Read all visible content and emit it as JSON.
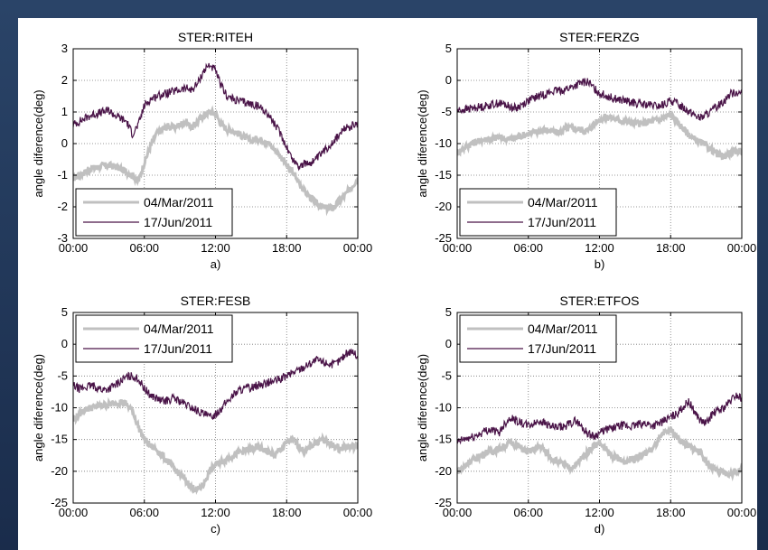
{
  "chart_data": [
    {
      "type": "line",
      "title": "STER:RITEH",
      "caption": "a)",
      "ylabel": "angle diference(deg)",
      "ylim": [
        -3,
        3
      ],
      "yticks": [
        "-3",
        "-2",
        "-1",
        "0",
        "1",
        "2",
        "3"
      ],
      "xlim": [
        0,
        24
      ],
      "xticks": [
        "00:00",
        "06:00",
        "12:00",
        "18:00",
        "00:00"
      ],
      "grid": true,
      "legend_position": "bottom-left",
      "series": [
        {
          "name": "04/Mar/2011",
          "color": "#c0c0c0",
          "x": [
            0,
            0.5,
            1,
            1.5,
            2,
            2.5,
            3,
            3.5,
            4,
            4.5,
            5,
            5.5,
            6,
            6.5,
            7,
            7.5,
            8,
            8.5,
            9,
            9.5,
            10,
            10.5,
            11,
            11.5,
            12,
            12.5,
            13,
            13.5,
            14,
            14.5,
            15,
            15.5,
            16,
            16.5,
            17,
            17.5,
            18,
            18.5,
            19,
            19.5,
            20,
            20.5,
            21,
            21.5,
            22,
            22.5,
            23,
            23.5,
            24
          ],
          "y": [
            -1.1,
            -1.0,
            -0.9,
            -0.8,
            -0.75,
            -0.7,
            -0.7,
            -0.72,
            -0.8,
            -0.9,
            -1.0,
            -1.2,
            -0.6,
            -0.1,
            0.3,
            0.45,
            0.55,
            0.5,
            0.6,
            0.7,
            0.5,
            0.7,
            0.9,
            1.0,
            0.95,
            0.6,
            0.45,
            0.4,
            0.3,
            0.2,
            0.1,
            0.15,
            0.1,
            0.0,
            -0.2,
            -0.4,
            -0.7,
            -0.9,
            -1.2,
            -1.5,
            -1.7,
            -1.9,
            -2.0,
            -2.05,
            -2.0,
            -1.8,
            -1.6,
            -1.35,
            -1.1
          ]
        },
        {
          "name": "17/Jun/2011",
          "color": "#4a1448",
          "x": [
            0,
            0.5,
            1,
            1.5,
            2,
            2.5,
            3,
            3.5,
            4,
            4.5,
            5,
            5.5,
            6,
            6.5,
            7,
            7.5,
            8,
            8.5,
            9,
            9.5,
            10,
            10.5,
            11,
            11.5,
            12,
            12.5,
            13,
            13.5,
            14,
            14.5,
            15,
            15.5,
            16,
            16.5,
            17,
            17.5,
            18,
            18.5,
            19,
            19.5,
            20,
            20.5,
            21,
            21.5,
            22,
            22.5,
            23,
            23.5,
            24
          ],
          "y": [
            0.6,
            0.7,
            0.8,
            0.9,
            0.95,
            1.0,
            1.05,
            0.9,
            0.8,
            0.7,
            0.3,
            0.6,
            1.2,
            1.4,
            1.5,
            1.55,
            1.6,
            1.65,
            1.7,
            1.75,
            1.7,
            1.9,
            2.3,
            2.5,
            2.3,
            1.8,
            1.5,
            1.4,
            1.35,
            1.3,
            1.25,
            1.2,
            1.1,
            0.9,
            0.6,
            0.3,
            -0.1,
            -0.5,
            -0.7,
            -0.65,
            -0.6,
            -0.5,
            -0.3,
            -0.1,
            0.1,
            0.3,
            0.5,
            0.55,
            0.6
          ]
        }
      ]
    },
    {
      "type": "line",
      "title": "STER:FERZG",
      "caption": "b)",
      "ylabel": "angle diference(deg)",
      "ylim": [
        -25,
        5
      ],
      "yticks": [
        "-25",
        "-20",
        "-15",
        "-10",
        "-5",
        "0",
        "5"
      ],
      "xlim": [
        0,
        24
      ],
      "xticks": [
        "00:00",
        "06:00",
        "12:00",
        "18:00",
        "00:00"
      ],
      "grid": true,
      "legend_position": "bottom-left",
      "series": [
        {
          "name": "04/Mar/2011",
          "color": "#c0c0c0",
          "x": [
            0,
            0.5,
            1,
            1.5,
            2,
            2.5,
            3,
            3.5,
            4,
            4.5,
            5,
            5.5,
            6,
            6.5,
            7,
            7.5,
            8,
            8.5,
            9,
            9.5,
            10,
            10.5,
            11,
            11.5,
            12,
            12.5,
            13,
            13.5,
            14,
            14.5,
            15,
            15.5,
            16,
            16.5,
            17,
            17.5,
            18,
            18.5,
            19,
            19.5,
            20,
            20.5,
            21,
            21.5,
            22,
            22.5,
            23,
            23.5,
            24
          ],
          "y": [
            -11.5,
            -10.8,
            -10.2,
            -9.8,
            -9.5,
            -9.3,
            -9.2,
            -9.0,
            -9.2,
            -9.3,
            -9.0,
            -8.7,
            -8.4,
            -8.2,
            -8.0,
            -7.8,
            -8.1,
            -8.3,
            -7.8,
            -7.5,
            -7.6,
            -7.8,
            -8.0,
            -7.0,
            -6.2,
            -5.8,
            -5.9,
            -6.2,
            -6.4,
            -6.6,
            -6.7,
            -6.9,
            -6.6,
            -6.4,
            -6.2,
            -5.8,
            -5.5,
            -6.5,
            -7.5,
            -8.5,
            -9.3,
            -9.8,
            -10.3,
            -11.0,
            -11.8,
            -12.0,
            -11.5,
            -11.3,
            -11.0
          ]
        },
        {
          "name": "17/Jun/2011",
          "color": "#4a1448",
          "x": [
            0,
            0.5,
            1,
            1.5,
            2,
            2.5,
            3,
            3.5,
            4,
            4.5,
            5,
            5.5,
            6,
            6.5,
            7,
            7.5,
            8,
            8.5,
            9,
            9.5,
            10,
            10.5,
            11,
            11.5,
            12,
            12.5,
            13,
            13.5,
            14,
            14.5,
            15,
            15.5,
            16,
            16.5,
            17,
            17.5,
            18,
            18.5,
            19,
            19.5,
            20,
            20.5,
            21,
            21.5,
            22,
            22.5,
            23,
            23.5,
            24
          ],
          "y": [
            -4.8,
            -4.6,
            -4.5,
            -4.3,
            -4.2,
            -4.0,
            -3.8,
            -3.6,
            -3.8,
            -4.2,
            -4.4,
            -3.8,
            -3.2,
            -2.8,
            -2.4,
            -2.1,
            -1.8,
            -1.6,
            -1.5,
            -1.2,
            -0.8,
            -0.4,
            -0.2,
            -1.2,
            -2.0,
            -2.4,
            -2.7,
            -3.0,
            -3.2,
            -3.4,
            -3.6,
            -3.8,
            -3.9,
            -4.0,
            -4.1,
            -3.8,
            -3.2,
            -3.6,
            -4.2,
            -4.8,
            -5.4,
            -6.0,
            -5.4,
            -4.8,
            -4.0,
            -3.2,
            -2.2,
            -1.8,
            -2.0
          ]
        }
      ]
    },
    {
      "type": "line",
      "title": "STER:FESB",
      "caption": "c)",
      "ylabel": "angle diference(deg)",
      "ylim": [
        -25,
        5
      ],
      "yticks": [
        "-25",
        "-20",
        "-15",
        "-10",
        "-5",
        "0",
        "5"
      ],
      "xlim": [
        0,
        24
      ],
      "xticks": [
        "00:00",
        "06:00",
        "12:00",
        "18:00",
        "00:00"
      ],
      "grid": true,
      "legend_position": "top-left",
      "series": [
        {
          "name": "04/Mar/2011",
          "color": "#c0c0c0",
          "x": [
            0,
            0.5,
            1,
            1.5,
            2,
            2.5,
            3,
            3.5,
            4,
            4.5,
            5,
            5.5,
            6,
            6.5,
            7,
            7.5,
            8,
            8.5,
            9,
            9.5,
            10,
            10.5,
            11,
            11.5,
            12,
            12.5,
            13,
            13.5,
            14,
            14.5,
            15,
            15.5,
            16,
            16.5,
            17,
            17.5,
            18,
            18.5,
            19,
            19.5,
            20,
            20.5,
            21,
            21.5,
            22,
            22.5,
            23,
            23.5,
            24
          ],
          "y": [
            -12.0,
            -11.0,
            -10.3,
            -10.0,
            -9.8,
            -9.6,
            -9.5,
            -9.3,
            -9.0,
            -9.5,
            -10.5,
            -13.0,
            -15.0,
            -16.0,
            -16.5,
            -17.5,
            -18.5,
            -19.5,
            -20.5,
            -21.5,
            -22.5,
            -23.0,
            -22.0,
            -20.0,
            -19.0,
            -18.5,
            -18.0,
            -17.5,
            -17.0,
            -16.8,
            -16.5,
            -16.3,
            -16.5,
            -17.0,
            -17.5,
            -16.5,
            -15.5,
            -15.0,
            -16.0,
            -17.0,
            -16.0,
            -15.5,
            -15.0,
            -15.5,
            -16.0,
            -16.5,
            -16.0,
            -16.2,
            -16.0
          ]
        },
        {
          "name": "17/Jun/2011",
          "color": "#4a1448",
          "x": [
            0,
            0.5,
            1,
            1.5,
            2,
            2.5,
            3,
            3.5,
            4,
            4.5,
            5,
            5.5,
            6,
            6.5,
            7,
            7.5,
            8,
            8.5,
            9,
            9.5,
            10,
            10.5,
            11,
            11.5,
            12,
            12.5,
            13,
            13.5,
            14,
            14.5,
            15,
            15.5,
            16,
            16.5,
            17,
            17.5,
            18,
            18.5,
            19,
            19.5,
            20,
            20.5,
            21,
            21.5,
            22,
            22.5,
            23,
            23.5,
            24
          ],
          "y": [
            -6.5,
            -7.0,
            -6.8,
            -6.5,
            -6.8,
            -7.2,
            -7.0,
            -6.5,
            -5.8,
            -5.2,
            -5.0,
            -5.5,
            -7.0,
            -8.0,
            -8.5,
            -9.0,
            -8.8,
            -8.5,
            -9.0,
            -9.5,
            -10.0,
            -10.5,
            -11.0,
            -11.5,
            -11.0,
            -10.0,
            -9.0,
            -8.0,
            -7.2,
            -7.0,
            -6.8,
            -6.5,
            -6.3,
            -6.0,
            -5.8,
            -5.5,
            -5.0,
            -4.5,
            -4.0,
            -3.5,
            -3.0,
            -2.5,
            -2.8,
            -3.0,
            -3.2,
            -2.5,
            -1.5,
            -1.0,
            -2.0
          ]
        }
      ]
    },
    {
      "type": "line",
      "title": "STER:ETFOS",
      "caption": "d)",
      "ylabel": "angle diference(deg)",
      "ylim": [
        -25,
        5
      ],
      "yticks": [
        "-25",
        "-20",
        "-15",
        "-10",
        "-5",
        "0",
        "5"
      ],
      "xlim": [
        0,
        24
      ],
      "xticks": [
        "00:00",
        "06:00",
        "12:00",
        "18:00",
        "00:00"
      ],
      "grid": true,
      "legend_position": "top-left",
      "series": [
        {
          "name": "04/Mar/2011",
          "color": "#c0c0c0",
          "x": [
            0,
            0.5,
            1,
            1.5,
            2,
            2.5,
            3,
            3.5,
            4,
            4.5,
            5,
            5.5,
            6,
            6.5,
            7,
            7.5,
            8,
            8.5,
            9,
            9.5,
            10,
            10.5,
            11,
            11.5,
            12,
            12.5,
            13,
            13.5,
            14,
            14.5,
            15,
            15.5,
            16,
            16.5,
            17,
            17.5,
            18,
            18.5,
            19,
            19.5,
            20,
            20.5,
            21,
            21.5,
            22,
            22.5,
            23,
            23.5,
            24
          ],
          "y": [
            -20.0,
            -19.5,
            -18.5,
            -18.0,
            -17.5,
            -17.0,
            -16.8,
            -16.5,
            -16.0,
            -15.5,
            -15.8,
            -16.5,
            -17.0,
            -16.5,
            -16.0,
            -17.0,
            -18.0,
            -18.5,
            -19.0,
            -19.5,
            -19.0,
            -18.0,
            -17.0,
            -16.0,
            -15.5,
            -16.5,
            -17.5,
            -18.0,
            -18.5,
            -18.2,
            -18.0,
            -17.5,
            -17.0,
            -16.5,
            -15.0,
            -14.0,
            -13.5,
            -14.5,
            -15.5,
            -16.0,
            -16.5,
            -17.0,
            -18.5,
            -19.5,
            -20.0,
            -20.3,
            -20.5,
            -20.0,
            -19.8
          ]
        },
        {
          "name": "17/Jun/2011",
          "color": "#4a1448",
          "x": [
            0,
            0.5,
            1,
            1.5,
            2,
            2.5,
            3,
            3.5,
            4,
            4.5,
            5,
            5.5,
            6,
            6.5,
            7,
            7.5,
            8,
            8.5,
            9,
            9.5,
            10,
            10.5,
            11,
            11.5,
            12,
            12.5,
            13,
            13.5,
            14,
            14.5,
            15,
            15.5,
            16,
            16.5,
            17,
            17.5,
            18,
            18.5,
            19,
            19.5,
            20,
            20.5,
            21,
            21.5,
            22,
            22.5,
            23,
            23.5,
            24
          ],
          "y": [
            -15.5,
            -15.0,
            -14.8,
            -14.5,
            -14.0,
            -13.5,
            -13.5,
            -14.0,
            -12.5,
            -11.5,
            -12.0,
            -12.5,
            -12.8,
            -12.5,
            -12.0,
            -12.5,
            -13.0,
            -13.2,
            -13.0,
            -12.5,
            -12.0,
            -13.0,
            -14.0,
            -14.5,
            -14.0,
            -13.5,
            -13.2,
            -13.0,
            -12.8,
            -13.0,
            -12.8,
            -12.5,
            -12.5,
            -12.8,
            -12.5,
            -12.0,
            -11.5,
            -11.0,
            -10.0,
            -9.0,
            -10.5,
            -12.0,
            -12.5,
            -11.0,
            -10.5,
            -10.0,
            -9.0,
            -8.0,
            -8.5
          ]
        }
      ]
    }
  ]
}
